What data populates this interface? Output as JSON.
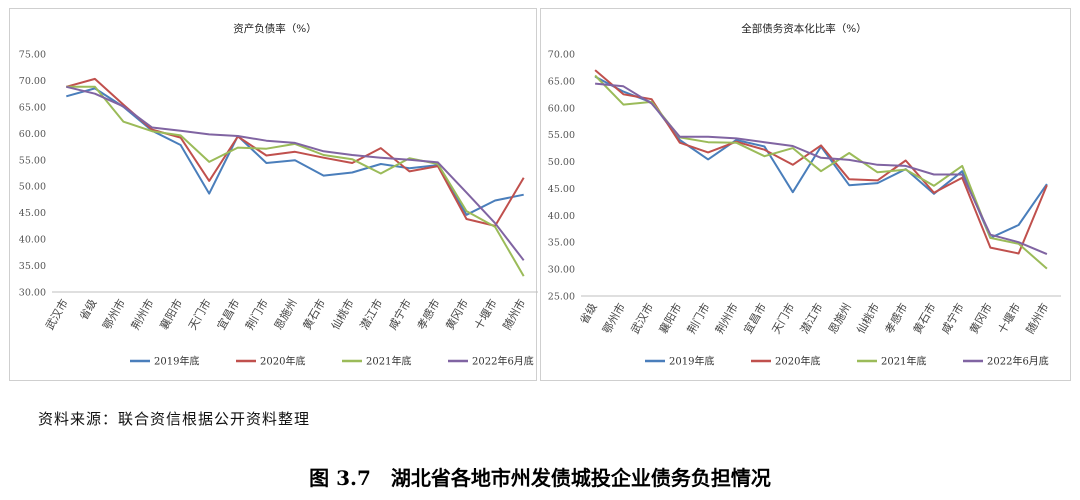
{
  "chart_data": [
    {
      "type": "line",
      "title": "资产负债率（%）",
      "categories": [
        "武汉市",
        "省级",
        "鄂州市",
        "荆州市",
        "襄阳市",
        "天门市",
        "宜昌市",
        "荆门市",
        "恩施州",
        "黄石市",
        "仙桃市",
        "潜江市",
        "咸宁市",
        "孝感市",
        "黄冈市",
        "十堰市",
        "随州市"
      ],
      "ylim": [
        30,
        75
      ],
      "yticks": [
        "30.00",
        "35.00",
        "40.00",
        "45.00",
        "50.00",
        "55.00",
        "60.00",
        "65.00",
        "70.00",
        "75.00"
      ],
      "legend_position": "bottom",
      "series": [
        {
          "name": "2019年底",
          "color": "#4a7ebb",
          "values": [
            67.0,
            68.5,
            65.0,
            60.5,
            57.8,
            48.6,
            59.5,
            54.4,
            54.9,
            52.0,
            52.6,
            54.2,
            53.4,
            54.0,
            44.6,
            47.3,
            48.4
          ]
        },
        {
          "name": "2020年底",
          "color": "#c0504d",
          "values": [
            68.8,
            70.3,
            65.4,
            60.7,
            59.2,
            51.0,
            59.4,
            55.8,
            56.5,
            55.4,
            54.4,
            57.2,
            52.8,
            53.8,
            43.8,
            42.5,
            51.6
          ]
        },
        {
          "name": "2021年底",
          "color": "#9bbb59",
          "values": [
            68.8,
            68.8,
            62.2,
            60.4,
            59.6,
            54.6,
            57.3,
            57.1,
            58.0,
            55.9,
            55.1,
            52.4,
            55.3,
            54.2,
            45.3,
            42.3,
            33.0
          ]
        },
        {
          "name": "2022年6月底",
          "color": "#8064a2",
          "values": [
            68.8,
            67.5,
            65.1,
            61.1,
            60.5,
            59.8,
            59.5,
            58.6,
            58.2,
            56.6,
            55.9,
            55.4,
            55.0,
            54.5,
            48.8,
            43.0,
            36.0
          ]
        }
      ]
    },
    {
      "type": "line",
      "title": "全部债务资本化比率（%）",
      "categories": [
        "省级",
        "鄂州市",
        "武汉市",
        "襄阳市",
        "荆门市",
        "荆州市",
        "宜昌市",
        "天门市",
        "潜江市",
        "恩施州",
        "仙桃市",
        "孝感市",
        "黄石市",
        "咸宁市",
        "黄冈市",
        "十堰市",
        "随州市"
      ],
      "ylim": [
        25,
        70
      ],
      "yticks": [
        "25.00",
        "30.00",
        "35.00",
        "40.00",
        "45.00",
        "50.00",
        "55.00",
        "60.00",
        "65.00",
        "70.00"
      ],
      "legend_position": "bottom",
      "series": [
        {
          "name": "2019年底",
          "color": "#4a7ebb",
          "values": [
            65.8,
            63.0,
            61.0,
            54.0,
            50.4,
            54.0,
            52.8,
            44.3,
            52.8,
            45.6,
            46.0,
            48.6,
            44.0,
            48.2,
            35.8,
            38.2,
            45.8
          ]
        },
        {
          "name": "2020年底",
          "color": "#c0504d",
          "values": [
            67.0,
            62.5,
            61.6,
            53.5,
            51.7,
            53.7,
            52.2,
            49.4,
            53.0,
            46.7,
            46.5,
            50.2,
            44.2,
            47.0,
            34.0,
            32.9,
            45.6
          ]
        },
        {
          "name": "2021年底",
          "color": "#9bbb59",
          "values": [
            66.0,
            60.6,
            61.1,
            54.5,
            53.6,
            53.5,
            51.0,
            52.5,
            48.2,
            51.6,
            48.0,
            48.5,
            45.5,
            49.2,
            35.8,
            34.7,
            30.1
          ]
        },
        {
          "name": "2022年6月底",
          "color": "#8064a2",
          "values": [
            64.5,
            64.0,
            60.8,
            54.6,
            54.6,
            54.3,
            53.6,
            52.9,
            50.7,
            50.3,
            49.4,
            49.2,
            47.6,
            47.6,
            36.4,
            35.0,
            32.8
          ]
        }
      ]
    }
  ],
  "source_note": "资料来源：联合资信根据公开资料整理",
  "figure_caption": "图 3.7　湖北省各地市州发债城投企业债务负担情况"
}
